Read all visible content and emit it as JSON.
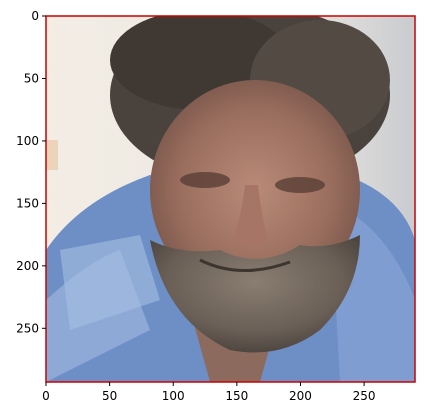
{
  "figure": {
    "image_description_icon": "portrait-photo",
    "frame_color": "#cc0000",
    "x_ticks": [
      "0",
      "50",
      "100",
      "150",
      "200",
      "250"
    ],
    "y_ticks": [
      "0",
      "50",
      "100",
      "150",
      "200",
      "250"
    ],
    "x_range": [
      0,
      290
    ],
    "y_range": [
      0,
      293
    ]
  }
}
